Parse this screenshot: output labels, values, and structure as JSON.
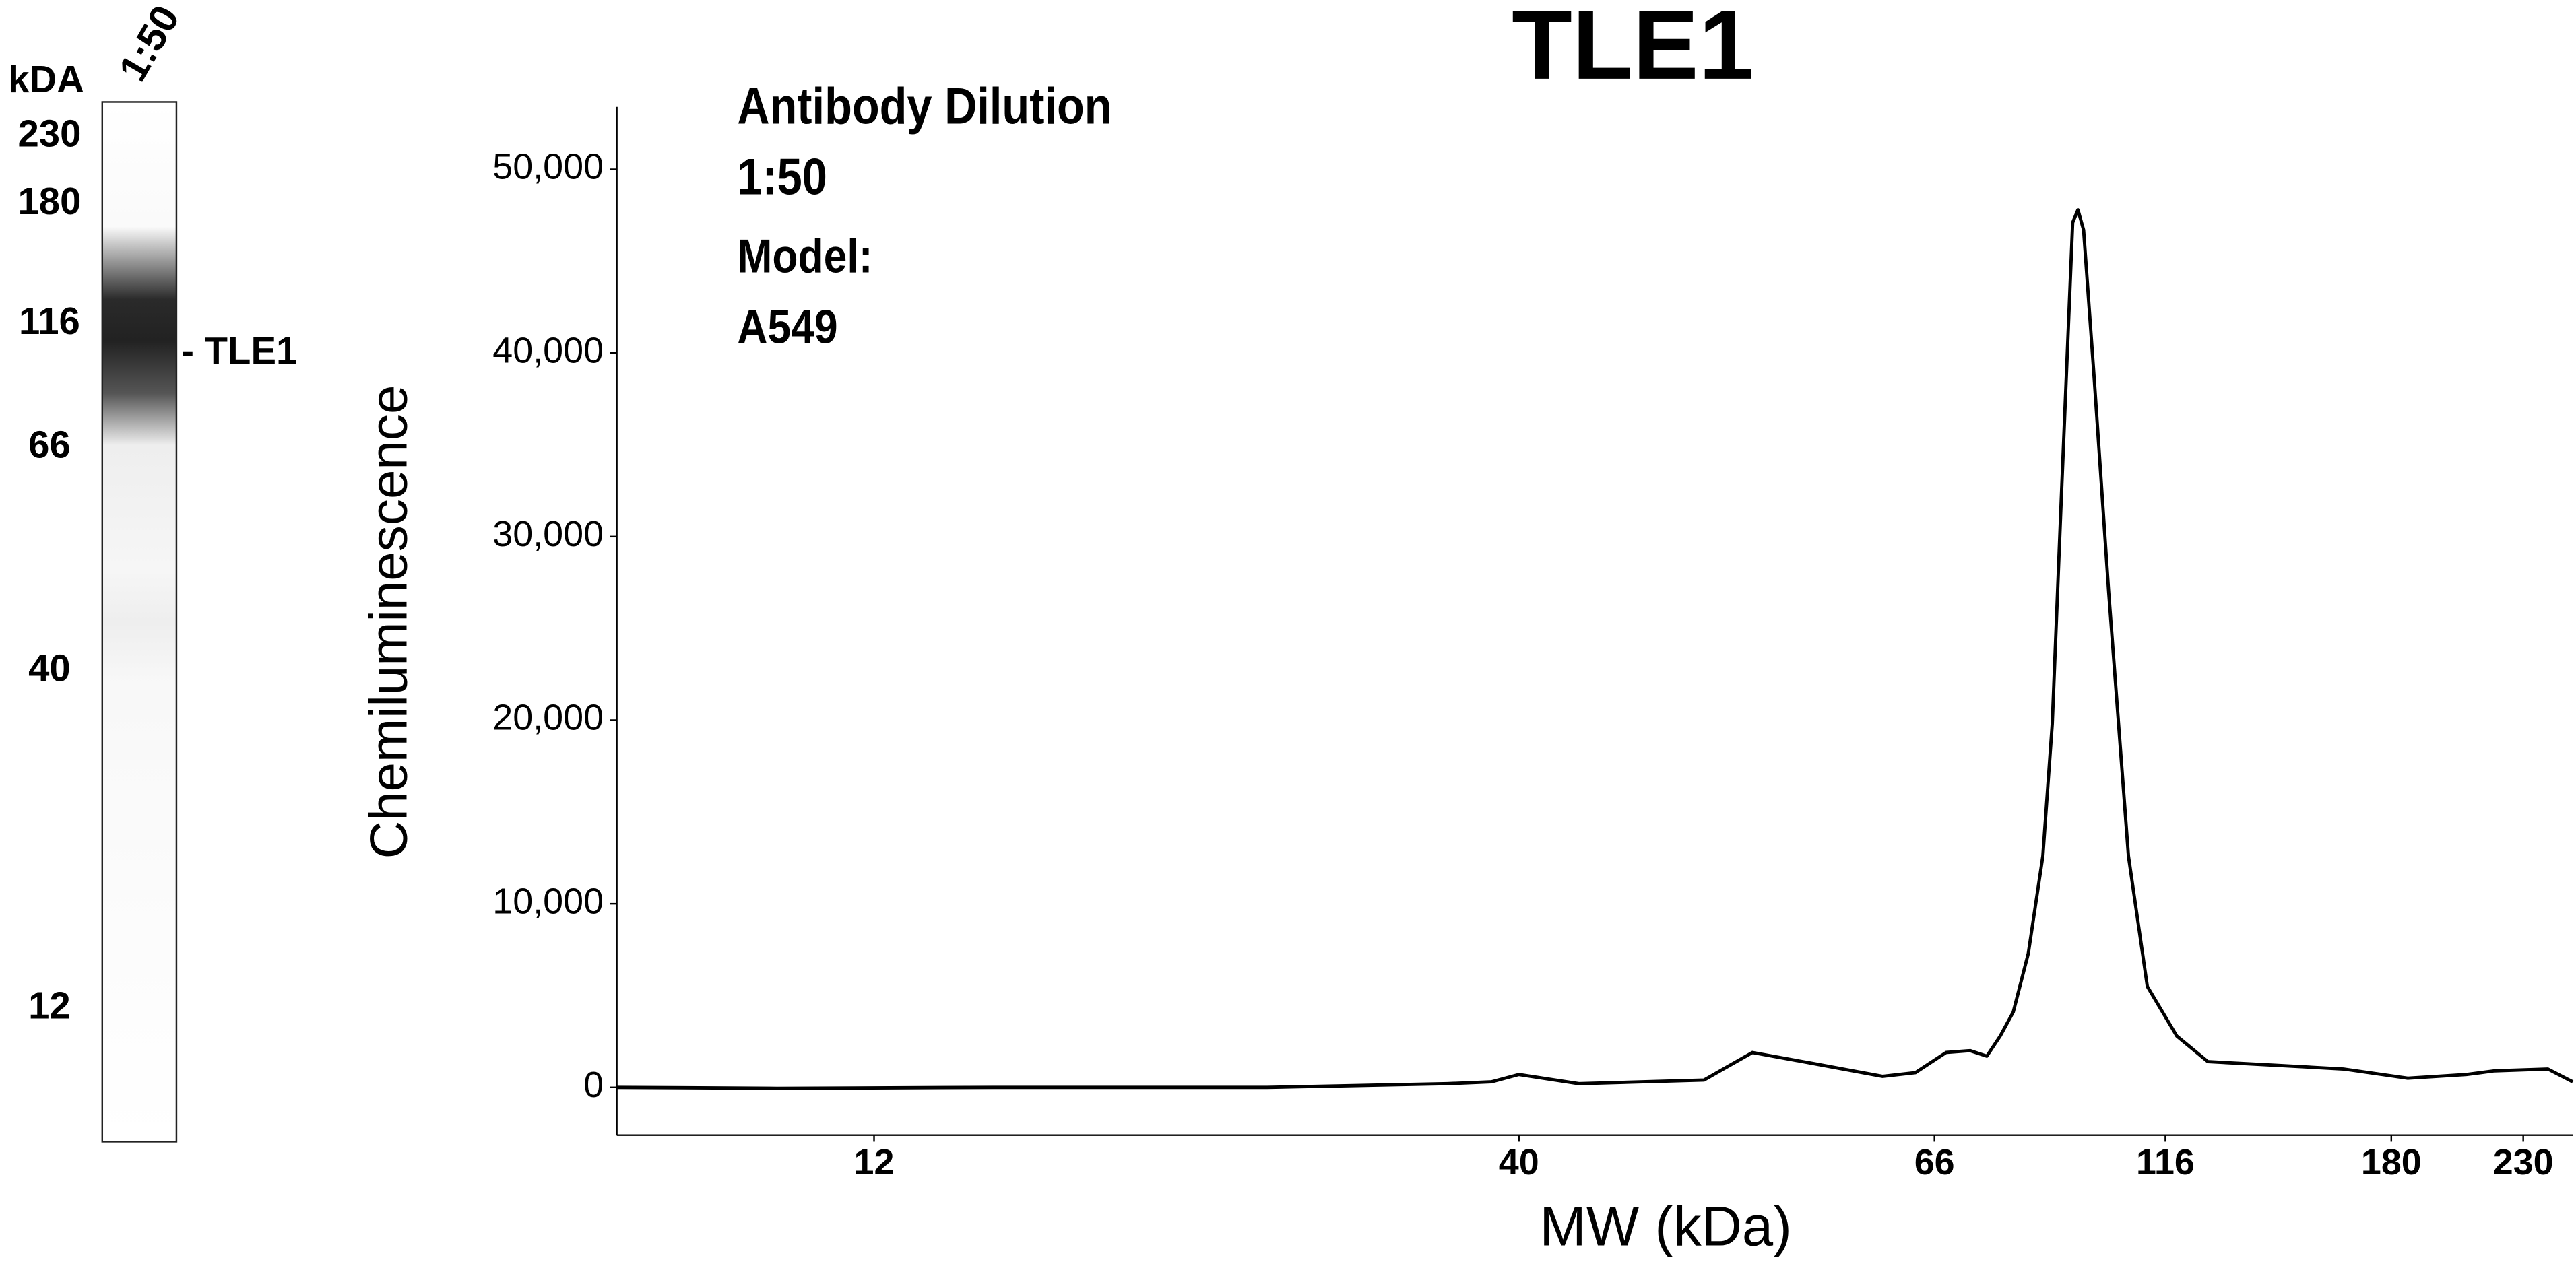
{
  "chart_data": {
    "type": "line",
    "title": "TLE1",
    "annotations": [
      "Antibody Dilution",
      "1:50",
      "Model:",
      "A549"
    ],
    "x_label": "MW (kDa)",
    "y_label": "Chemiluminescence",
    "x": [
      7.4,
      10,
      15,
      25,
      35,
      38,
      40,
      43,
      50,
      53,
      57,
      62,
      64.5,
      67.9,
      72,
      75,
      77.5,
      80,
      83,
      86,
      88,
      90,
      92.5,
      93.7,
      95,
      97.5,
      101,
      106,
      111,
      118.6,
      126,
      144,
      164,
      185.6,
      207,
      218,
      240.7,
      252
    ],
    "values": [
      0,
      -50,
      0,
      0,
      200,
      300,
      700,
      200,
      400,
      1900,
      1300,
      600,
      800,
      1900,
      2000,
      1700,
      2800,
      4100,
      7300,
      12600,
      19800,
      32300,
      47100,
      47800,
      46700,
      38600,
      27000,
      12600,
      5500,
      2800,
      1400,
      1200,
      1000,
      500,
      700,
      900,
      1000,
      300
    ],
    "color": "#000000",
    "x_scale": "log",
    "xlim": [
      7.4,
      252
    ],
    "xticks": [
      12,
      40,
      66,
      116,
      180,
      230
    ],
    "ylim": [
      -2600,
      53400
    ],
    "yticks": [
      0,
      {
        "value": 10000,
        "label": "10,000"
      },
      {
        "value": 20000,
        "label": "20,000"
      },
      {
        "value": 30000,
        "label": "30,000"
      },
      {
        "value": 40000,
        "label": "40,000"
      },
      {
        "value": 50000,
        "label": "50,000"
      }
    ]
  },
  "blot": {
    "unit_label": "kDA",
    "markers": [
      "230",
      "180",
      "116",
      "66",
      "40",
      "12"
    ],
    "lane_label": "1:50",
    "band_label": "- TLE1"
  }
}
